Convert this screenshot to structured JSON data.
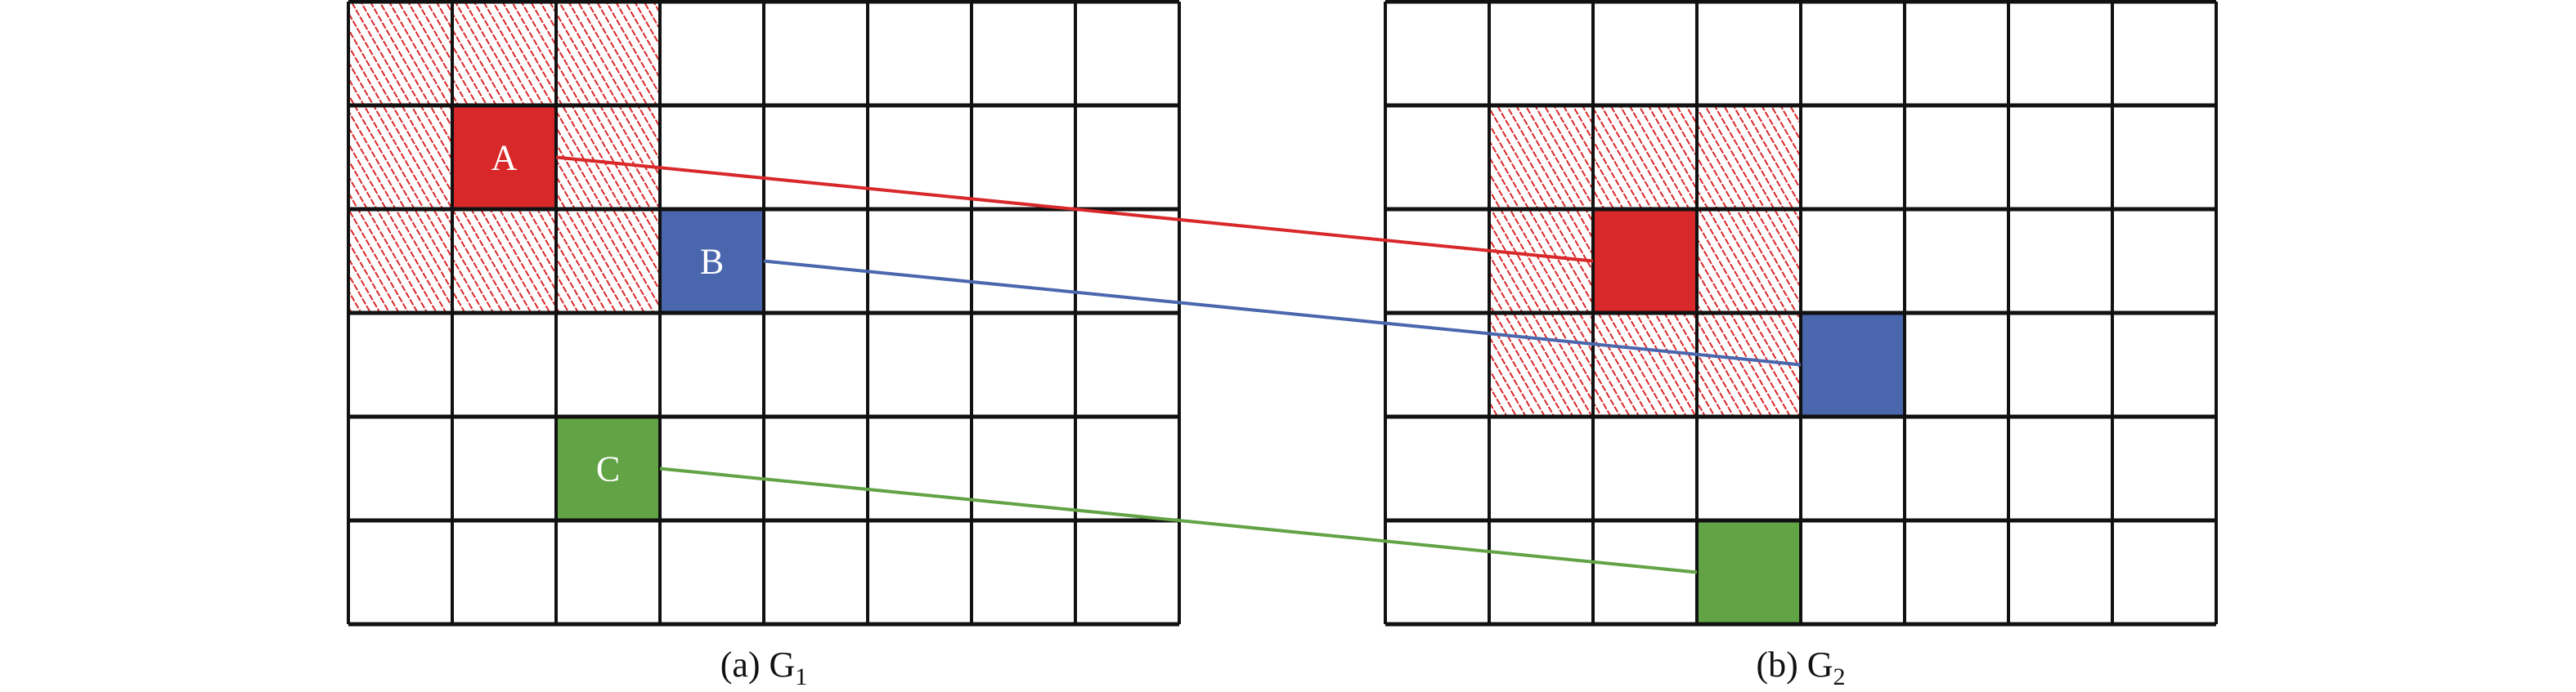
{
  "colors": {
    "red": "#D9282A",
    "blue": "#4A67AE",
    "green": "#62A346",
    "hatch": "#D9282A",
    "grid": "#111111"
  },
  "grid": {
    "cols": 8,
    "rows": 6
  },
  "panels": [
    {
      "id": "g1",
      "caption_prefix": "(a) G",
      "caption_sub": "1",
      "hatched": [
        [
          0,
          0
        ],
        [
          1,
          0
        ],
        [
          2,
          0
        ],
        [
          0,
          1
        ],
        [
          2,
          1
        ],
        [
          0,
          2
        ],
        [
          1,
          2
        ],
        [
          2,
          2
        ]
      ],
      "cells": [
        {
          "key": "A",
          "label": "A",
          "col": 1,
          "row": 1,
          "color": "red"
        },
        {
          "key": "B",
          "label": "B",
          "col": 3,
          "row": 2,
          "color": "blue"
        },
        {
          "key": "C",
          "label": "C",
          "col": 2,
          "row": 4,
          "color": "green"
        }
      ]
    },
    {
      "id": "g2",
      "caption_prefix": "(b) G",
      "caption_sub": "2",
      "hatched": [
        [
          1,
          1
        ],
        [
          2,
          1
        ],
        [
          3,
          1
        ],
        [
          1,
          2
        ],
        [
          3,
          2
        ],
        [
          1,
          3
        ],
        [
          2,
          3
        ],
        [
          3,
          3
        ]
      ],
      "cells": [
        {
          "key": "A",
          "label": "",
          "col": 2,
          "row": 2,
          "color": "red"
        },
        {
          "key": "B",
          "label": "",
          "col": 4,
          "row": 3,
          "color": "blue"
        },
        {
          "key": "C",
          "label": "",
          "col": 3,
          "row": 5,
          "color": "green"
        }
      ]
    }
  ],
  "links": [
    {
      "from": "A",
      "color": "red"
    },
    {
      "from": "B",
      "color": "blue"
    },
    {
      "from": "C",
      "color": "green"
    }
  ]
}
